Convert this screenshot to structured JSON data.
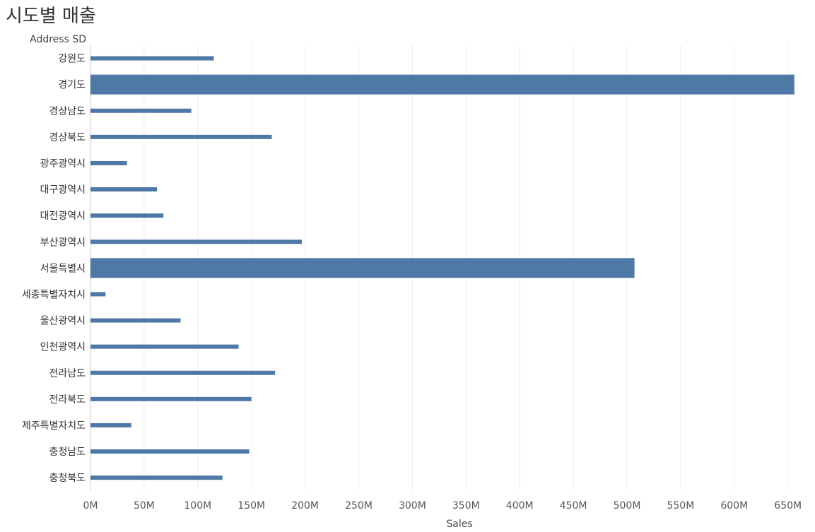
{
  "title": "시도별 매출",
  "chart_data": {
    "type": "bar",
    "orientation": "horizontal",
    "row_header": "Address SD",
    "xlabel": "Sales",
    "categories": [
      "강원도",
      "경기도",
      "경상남도",
      "경상북도",
      "광주광역시",
      "대구광역시",
      "대전광역시",
      "부산광역시",
      "서울특별시",
      "세종특별자치시",
      "울산광역시",
      "인천광역시",
      "전라남도",
      "전라북도",
      "제주특별자치도",
      "충청남도",
      "충청북도"
    ],
    "values": [
      115,
      656,
      94,
      169,
      34,
      62,
      68,
      197,
      507,
      14,
      84,
      138,
      172,
      150,
      38,
      148,
      123
    ],
    "x_ticks": [
      "0M",
      "50M",
      "100M",
      "150M",
      "200M",
      "250M",
      "300M",
      "350M",
      "400M",
      "450M",
      "500M",
      "550M",
      "600M",
      "650M"
    ],
    "xlim": [
      0,
      665
    ],
    "grid": true,
    "highlighted_categories": [
      "경기도",
      "서울특별시"
    ],
    "color": "#4e79a7"
  }
}
